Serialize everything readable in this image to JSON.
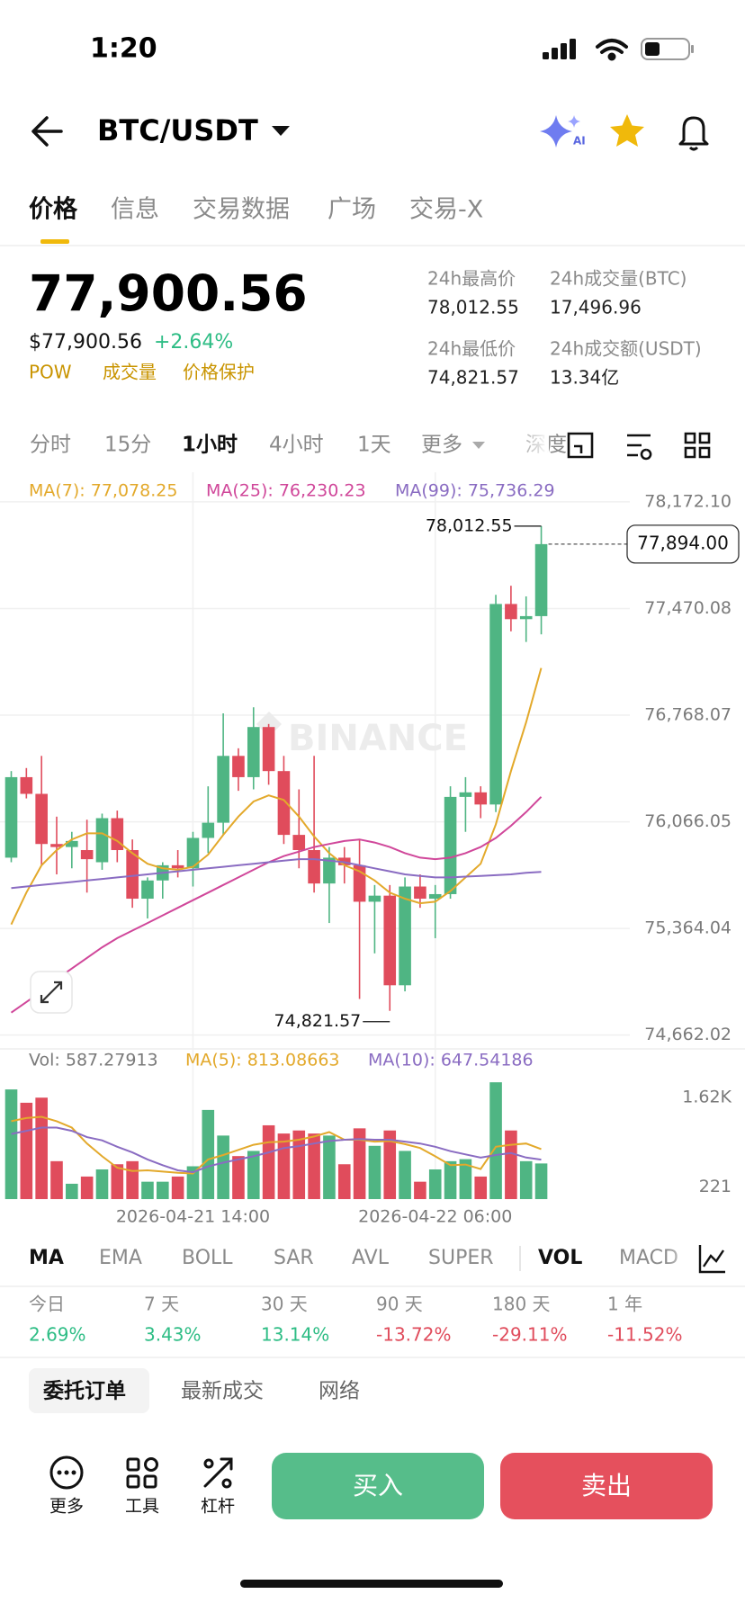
{
  "status_bar": {
    "time": "1:20"
  },
  "header": {
    "pair": "BTC/USDT",
    "ai_badge": "AI"
  },
  "tabs": [
    "价格",
    "信息",
    "交易数据",
    "广场",
    "交易-X"
  ],
  "price": {
    "last": "77,900.56",
    "usd": "$77,900.56",
    "change": "+2.64%",
    "tags": [
      "POW",
      "成交量",
      "价格保护"
    ]
  },
  "stats": [
    {
      "label": "24h最高价",
      "value": "78,012.55"
    },
    {
      "label": "24h成交量(BTC)",
      "value": "17,496.96"
    },
    {
      "label": "24h最低价",
      "value": "74,821.57"
    },
    {
      "label": "24h成交额(USDT)",
      "value": "13.34亿"
    }
  ],
  "intervals": [
    "分时",
    "15分",
    "1小时",
    "4小时",
    "1天",
    "更多",
    "深度"
  ],
  "watermark": "BINANCE",
  "chart_data": [
    {
      "type": "candlestick",
      "up_color": "#4fb583",
      "down_color": "#e04c5c",
      "grid": true,
      "ylim": [
        74595,
        78367
      ],
      "yticks": [
        {
          "value": 78172.1,
          "label": "78,172.10"
        },
        {
          "value": 77470.08,
          "label": "77,470.08"
        },
        {
          "value": 76768.07,
          "label": "76,768.07"
        },
        {
          "value": 76066.05,
          "label": "76,066.05"
        },
        {
          "value": 75364.04,
          "label": "75,364.04"
        },
        {
          "value": 74662.02,
          "label": "74,662.02"
        }
      ],
      "categories": [
        null,
        null,
        null,
        null,
        null,
        null,
        null,
        null,
        null,
        null,
        null,
        null,
        "2026-04-21 14:00",
        null,
        null,
        null,
        null,
        null,
        null,
        null,
        null,
        null,
        null,
        null,
        null,
        null,
        null,
        null,
        "2026-04-22 06:00",
        null,
        null,
        null,
        null,
        null,
        null,
        null
      ],
      "candles": [
        {
          "open": 75830,
          "high": 76400,
          "low": 75800,
          "close": 76360
        },
        {
          "open": 76360,
          "high": 76420,
          "low": 76220,
          "close": 76250
        },
        {
          "open": 76250,
          "high": 76500,
          "low": 75780,
          "close": 75920
        },
        {
          "open": 75920,
          "high": 76100,
          "low": 75720,
          "close": 75900
        },
        {
          "open": 75900,
          "high": 76000,
          "low": 75760,
          "close": 75940
        },
        {
          "open": 75880,
          "high": 76080,
          "low": 75600,
          "close": 75820
        },
        {
          "open": 75800,
          "high": 76120,
          "low": 75750,
          "close": 76090
        },
        {
          "open": 76090,
          "high": 76140,
          "low": 75800,
          "close": 75880
        },
        {
          "open": 75880,
          "high": 75950,
          "low": 75500,
          "close": 75560
        },
        {
          "open": 75560,
          "high": 75700,
          "low": 75430,
          "close": 75680
        },
        {
          "open": 75680,
          "high": 75800,
          "low": 75560,
          "close": 75780
        },
        {
          "open": 75780,
          "high": 75880,
          "low": 75700,
          "close": 75760
        },
        {
          "open": 75760,
          "high": 76000,
          "low": 75640,
          "close": 75960
        },
        {
          "open": 75960,
          "high": 76300,
          "low": 75860,
          "close": 76060
        },
        {
          "open": 76060,
          "high": 76780,
          "low": 75980,
          "close": 76500
        },
        {
          "open": 76500,
          "high": 76550,
          "low": 76270,
          "close": 76360
        },
        {
          "open": 76360,
          "high": 76820,
          "low": 76280,
          "close": 76690
        },
        {
          "open": 76690,
          "high": 76710,
          "low": 76310,
          "close": 76400
        },
        {
          "open": 76400,
          "high": 76500,
          "low": 75920,
          "close": 75980
        },
        {
          "open": 75980,
          "high": 76280,
          "low": 75760,
          "close": 75880
        },
        {
          "open": 75880,
          "high": 76500,
          "low": 75600,
          "close": 75660
        },
        {
          "open": 75660,
          "high": 75900,
          "low": 75400,
          "close": 75830
        },
        {
          "open": 75830,
          "high": 75900,
          "low": 75660,
          "close": 75780
        },
        {
          "open": 75780,
          "high": 75950,
          "low": 74900,
          "close": 75540
        },
        {
          "open": 75540,
          "high": 75650,
          "low": 75200,
          "close": 75580
        },
        {
          "open": 75580,
          "high": 75650,
          "low": 74821.57,
          "close": 74990
        },
        {
          "open": 74990,
          "high": 75700,
          "low": 74950,
          "close": 75640
        },
        {
          "open": 75640,
          "high": 75720,
          "low": 75500,
          "close": 75560
        },
        {
          "open": 75560,
          "high": 75650,
          "low": 75300,
          "close": 75590
        },
        {
          "open": 75590,
          "high": 76300,
          "low": 75560,
          "close": 76230
        },
        {
          "open": 76230,
          "high": 76360,
          "low": 76000,
          "close": 76260
        },
        {
          "open": 76260,
          "high": 76300,
          "low": 76090,
          "close": 76180
        },
        {
          "open": 76180,
          "high": 77560,
          "low": 76130,
          "close": 77500
        },
        {
          "open": 77500,
          "high": 77620,
          "low": 77320,
          "close": 77400
        },
        {
          "open": 77400,
          "high": 77550,
          "low": 77250,
          "close": 77420
        },
        {
          "open": 77420,
          "high": 78012.55,
          "low": 77300,
          "close": 77894
        }
      ],
      "series": [
        {
          "name": "MA(7): 77,078.25",
          "color": "#e3a92b",
          "values": [
            75390,
            75600,
            75780,
            75880,
            75950,
            75990,
            75990,
            75940,
            75860,
            75790,
            75760,
            75750,
            75770,
            75850,
            75980,
            76100,
            76200,
            76240,
            76210,
            76100,
            75970,
            75860,
            75780,
            75740,
            75680,
            75600,
            75560,
            75530,
            75540,
            75610,
            75700,
            75790,
            76050,
            76400,
            76720,
            77078.25
          ]
        },
        {
          "name": "MA(25): 76,230.23",
          "color": "#d0479a",
          "values": [
            74810,
            74880,
            74950,
            75030,
            75100,
            75170,
            75240,
            75300,
            75350,
            75400,
            75450,
            75500,
            75550,
            75600,
            75650,
            75700,
            75750,
            75800,
            75840,
            75870,
            75900,
            75920,
            75940,
            75950,
            75930,
            75900,
            75860,
            75830,
            75820,
            75830,
            75860,
            75900,
            75960,
            76040,
            76130,
            76230.23
          ]
        },
        {
          "name": "MA(99): 75,736.29",
          "color": "#8a6cc2",
          "values": [
            75630,
            75640,
            75650,
            75660,
            75670,
            75680,
            75690,
            75700,
            75710,
            75720,
            75730,
            75740,
            75750,
            75760,
            75770,
            75780,
            75790,
            75800,
            75810,
            75820,
            75820,
            75810,
            75800,
            75780,
            75760,
            75740,
            75720,
            75710,
            75700,
            75700,
            75705,
            75710,
            75715,
            75720,
            75730,
            75736.29
          ]
        }
      ],
      "high_mark": {
        "value": 78012.55,
        "label": "78,012.55"
      },
      "low_mark": {
        "value": 74821.57,
        "label": "74,821.57"
      },
      "last_price": {
        "value": 77894,
        "label": "77,894.00"
      }
    },
    {
      "type": "bar",
      "title": "Vol: 587.27913",
      "ylim": [
        28,
        1990
      ],
      "yticks": [
        {
          "value": 1620,
          "label": "1.62K"
        },
        221
      ],
      "values": [
        1749,
        1540,
        1620,
        623,
        269,
        382,
        494,
        575,
        623,
        301,
        301,
        382,
        543,
        1427,
        1025,
        703,
        784,
        1186,
        1057,
        1105,
        1057,
        1025,
        575,
        1138,
        864,
        1105,
        784,
        301,
        494,
        623,
        655,
        382,
        1861,
        1105,
        623,
        587.27913
      ],
      "series": [
        {
          "name": "MA(5): 813.08663",
          "color": "#e3a92b",
          "values": [
            1250,
            1300,
            1320,
            1250,
            1150,
            900,
            700,
            520,
            470,
            480,
            460,
            440,
            430,
            650,
            720,
            800,
            880,
            920,
            930,
            960,
            1010,
            1080,
            960,
            960,
            930,
            940,
            890,
            830,
            700,
            560,
            570,
            500,
            850,
            880,
            900,
            813.08663
          ]
        },
        {
          "name": "MA(10): 647.54186",
          "color": "#8a6cc2",
          "values": [
            1050,
            1100,
            1150,
            1150,
            1100,
            1000,
            950,
            850,
            760,
            650,
            560,
            480,
            450,
            540,
            600,
            650,
            700,
            760,
            830,
            860,
            900,
            940,
            960,
            970,
            960,
            960,
            930,
            900,
            850,
            780,
            730,
            680,
            720,
            750,
            680,
            647.54186
          ]
        }
      ]
    }
  ],
  "indicators": [
    "MA",
    "EMA",
    "BOLL",
    "SAR",
    "AVL",
    "SUPER",
    "VOL",
    "MACD"
  ],
  "performance": [
    {
      "label": "今日",
      "value": "2.69%",
      "color": "#2ebd85"
    },
    {
      "label": "7 天",
      "value": "3.43%",
      "color": "#2ebd85"
    },
    {
      "label": "30 天",
      "value": "13.14%",
      "color": "#2ebd85"
    },
    {
      "label": "90 天",
      "value": "-13.72%",
      "color": "#e04c5c"
    },
    {
      "label": "180 天",
      "value": "-29.11%",
      "color": "#e04c5c"
    },
    {
      "label": "1 年",
      "value": "-11.52%",
      "color": "#e04c5c"
    }
  ],
  "order_tabs": [
    "委托订单",
    "最新成交",
    "网络"
  ],
  "toolbar": [
    "更多",
    "工具",
    "杠杆"
  ],
  "actions": {
    "buy": "买入",
    "sell": "卖出"
  }
}
